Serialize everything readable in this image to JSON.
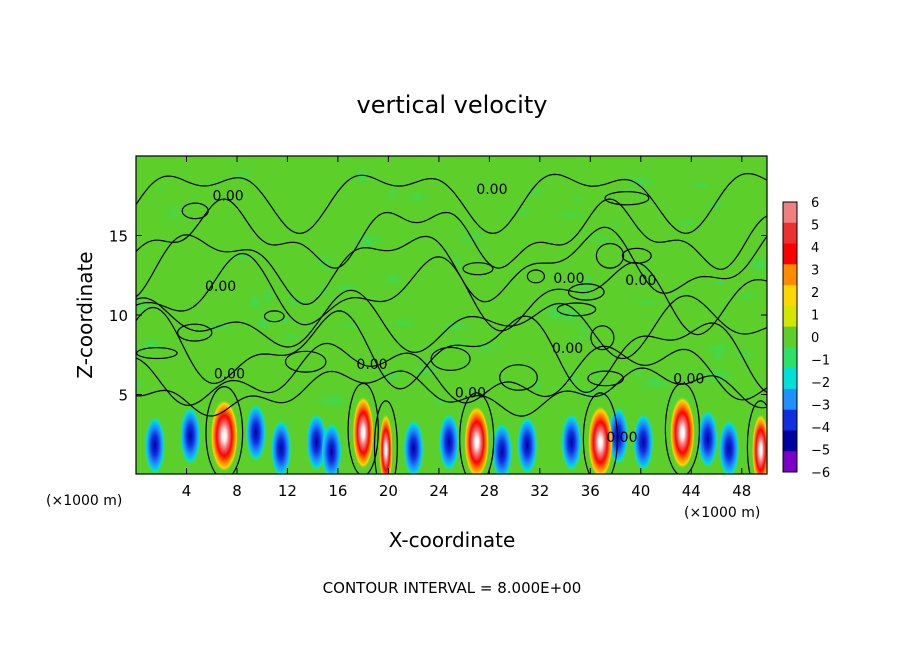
{
  "chart_data": {
    "type": "heatmap",
    "title": "vertical velocity",
    "xlabel": "X-coordinate",
    "ylabel": "Z-coordinate",
    "x_unit_label_left": "(×1000 m)",
    "x_unit_label_right": "(×1000 m)",
    "xlim": [
      0,
      50
    ],
    "ylim": [
      0,
      20
    ],
    "x_ticks": [
      4,
      8,
      12,
      16,
      20,
      24,
      28,
      32,
      36,
      40,
      44,
      48
    ],
    "y_ticks": [
      5,
      10,
      15
    ],
    "footnote": "CONTOUR INTERVAL = 8.000E+00",
    "colorbar": {
      "levels": [
        6,
        5,
        4,
        3,
        2,
        1,
        0,
        -1,
        -2,
        -3,
        -4,
        -5,
        -6
      ],
      "level_labels": [
        "6",
        "5",
        "4",
        "3",
        "2",
        "1",
        "0",
        "−1",
        "−2",
        "−3",
        "−4",
        "−5",
        "−6"
      ],
      "colors": [
        "#f08080",
        "#ee3030",
        "#ff0000",
        "#ff8c00",
        "#ffd700",
        "#d4e600",
        "#5ccf2a",
        "#2ee06a",
        "#00e0d8",
        "#1e90ff",
        "#1030e0",
        "#0000a0",
        "#7a00c8"
      ]
    },
    "contour_labels": [
      {
        "text": "0.00",
        "x": 7.3,
        "y": 17.2
      },
      {
        "text": "0.00",
        "x": 28.2,
        "y": 17.6
      },
      {
        "text": "0.00",
        "x": 6.7,
        "y": 11.5
      },
      {
        "text": "0.00",
        "x": 34.3,
        "y": 12.0
      },
      {
        "text": "0.00",
        "x": 40.0,
        "y": 11.9
      },
      {
        "text": "0.00",
        "x": 7.4,
        "y": 6.0
      },
      {
        "text": "0.00",
        "x": 18.7,
        "y": 6.6
      },
      {
        "text": "0.00",
        "x": 34.2,
        "y": 7.6
      },
      {
        "text": "0.00",
        "x": 43.8,
        "y": 5.7
      },
      {
        "text": "0.00",
        "x": 26.5,
        "y": 4.8
      },
      {
        "text": "0.00",
        "x": 38.5,
        "y": 2.0
      }
    ],
    "cells": [
      {
        "x": 7.0,
        "y": 2.4,
        "w": 1.1
      },
      {
        "x": 18.0,
        "y": 2.6,
        "w": 0.85
      },
      {
        "x": 19.8,
        "y": 1.5,
        "w": 0.55
      },
      {
        "x": 27.0,
        "y": 2.0,
        "w": 1.0
      },
      {
        "x": 36.8,
        "y": 2.0,
        "w": 1.0
      },
      {
        "x": 43.3,
        "y": 2.6,
        "w": 1.0
      },
      {
        "x": 49.5,
        "y": 1.5,
        "w": 0.7
      }
    ],
    "downdrafts": [
      {
        "x": 1.5,
        "y": 1.8
      },
      {
        "x": 4.3,
        "y": 2.4
      },
      {
        "x": 9.5,
        "y": 2.6
      },
      {
        "x": 11.5,
        "y": 1.6
      },
      {
        "x": 14.3,
        "y": 2.0
      },
      {
        "x": 15.5,
        "y": 1.4
      },
      {
        "x": 22.0,
        "y": 1.6
      },
      {
        "x": 24.8,
        "y": 2.0
      },
      {
        "x": 29.0,
        "y": 1.4
      },
      {
        "x": 31.0,
        "y": 1.8
      },
      {
        "x": 34.5,
        "y": 2.0
      },
      {
        "x": 38.2,
        "y": 2.4
      },
      {
        "x": 40.2,
        "y": 2.0
      },
      {
        "x": 45.3,
        "y": 2.2
      },
      {
        "x": 47.0,
        "y": 1.6
      }
    ]
  }
}
